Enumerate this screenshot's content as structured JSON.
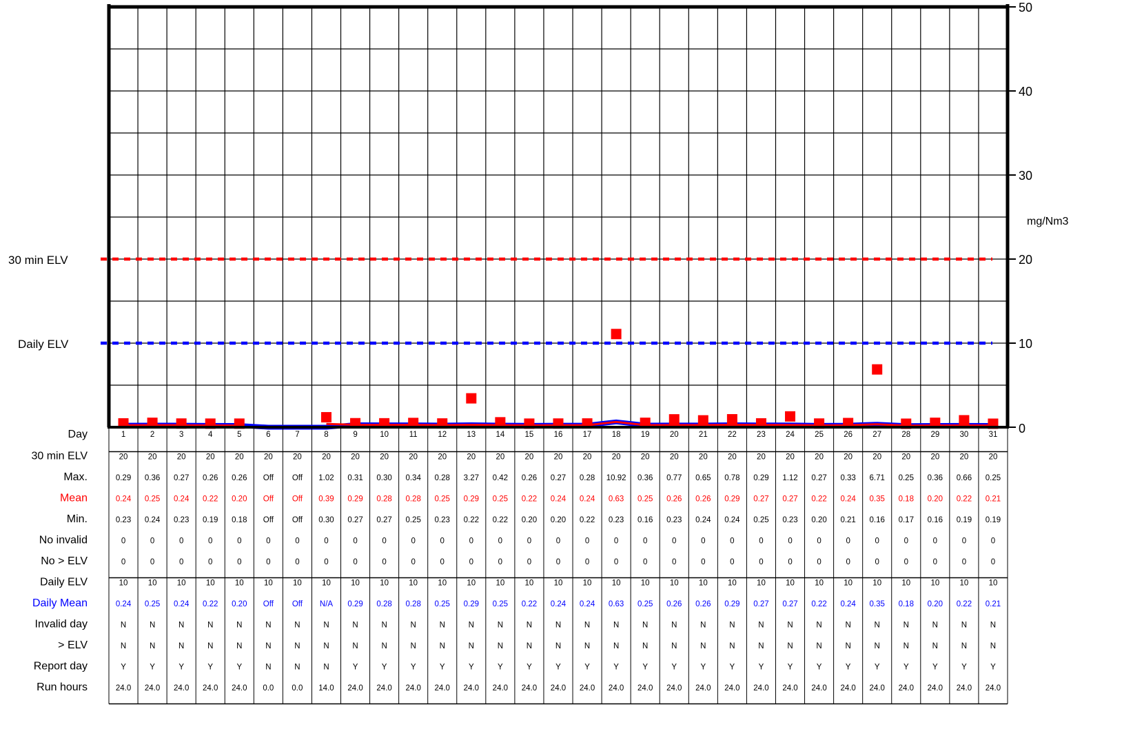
{
  "chart_data": {
    "type": "line",
    "y_unit": "mg/Nm3",
    "ylim": [
      0,
      50
    ],
    "y_ticks": [
      0,
      10,
      20,
      30,
      40,
      50
    ],
    "grid": true,
    "reference_lines": [
      {
        "label": "30 min ELV",
        "value": 20,
        "color": "#ff0000",
        "style": "dashed"
      },
      {
        "label": "Daily ELV",
        "value": 10,
        "color": "#0000ff",
        "style": "dashed"
      }
    ],
    "days": [
      1,
      2,
      3,
      4,
      5,
      6,
      7,
      8,
      9,
      10,
      11,
      12,
      13,
      14,
      15,
      16,
      17,
      18,
      19,
      20,
      21,
      22,
      23,
      24,
      25,
      26,
      27,
      28,
      29,
      30,
      31
    ],
    "series": [
      {
        "marker": "square",
        "color": "#ff0000",
        "values": [
          0.29,
          0.36,
          0.27,
          0.26,
          0.26,
          null,
          null,
          1.02,
          0.31,
          0.3,
          0.34,
          0.28,
          3.27,
          0.42,
          0.26,
          0.27,
          0.28,
          10.92,
          0.36,
          0.77,
          0.65,
          0.78,
          0.29,
          1.12,
          0.27,
          0.33,
          6.71,
          0.25,
          0.36,
          0.66,
          0.25
        ]
      },
      {
        "color": "#ff0000",
        "values": [
          0.24,
          0.25,
          0.24,
          0.22,
          0.2,
          null,
          null,
          0.39,
          0.29,
          0.28,
          0.28,
          0.25,
          0.29,
          0.25,
          0.22,
          0.24,
          0.24,
          0.63,
          0.25,
          0.26,
          0.26,
          0.29,
          0.27,
          0.27,
          0.22,
          0.24,
          0.35,
          0.18,
          0.2,
          0.22,
          0.21
        ]
      },
      {
        "color": "#0000ff",
        "values": [
          0.24,
          0.25,
          0.24,
          0.22,
          0.2,
          0.0,
          0.0,
          0.0,
          0.29,
          0.28,
          0.28,
          0.25,
          0.29,
          0.25,
          0.22,
          0.24,
          0.24,
          0.63,
          0.25,
          0.26,
          0.26,
          0.29,
          0.27,
          0.27,
          0.22,
          0.24,
          0.35,
          0.18,
          0.2,
          0.22,
          0.21
        ]
      }
    ],
    "table": {
      "rows": [
        {
          "label": "Day",
          "color": "#000000",
          "values": [
            "1",
            "2",
            "3",
            "4",
            "5",
            "6",
            "7",
            "8",
            "9",
            "10",
            "11",
            "12",
            "13",
            "14",
            "15",
            "16",
            "17",
            "18",
            "19",
            "20",
            "21",
            "22",
            "23",
            "24",
            "25",
            "26",
            "27",
            "28",
            "29",
            "30",
            "31"
          ]
        },
        {
          "label": "30 min ELV",
          "color": "#000000",
          "values": [
            "20",
            "20",
            "20",
            "20",
            "20",
            "20",
            "20",
            "20",
            "20",
            "20",
            "20",
            "20",
            "20",
            "20",
            "20",
            "20",
            "20",
            "20",
            "20",
            "20",
            "20",
            "20",
            "20",
            "20",
            "20",
            "20",
            "20",
            "20",
            "20",
            "20",
            "20"
          ]
        },
        {
          "label": "Max.",
          "color": "#000000",
          "values": [
            "0.29",
            "0.36",
            "0.27",
            "0.26",
            "0.26",
            "Off",
            "Off",
            "1.02",
            "0.31",
            "0.30",
            "0.34",
            "0.28",
            "3.27",
            "0.42",
            "0.26",
            "0.27",
            "0.28",
            "10.92",
            "0.36",
            "0.77",
            "0.65",
            "0.78",
            "0.29",
            "1.12",
            "0.27",
            "0.33",
            "6.71",
            "0.25",
            "0.36",
            "0.66",
            "0.25"
          ]
        },
        {
          "label": "Mean",
          "color": "#ff0000",
          "values": [
            "0.24",
            "0.25",
            "0.24",
            "0.22",
            "0.20",
            "Off",
            "Off",
            "0.39",
            "0.29",
            "0.28",
            "0.28",
            "0.25",
            "0.29",
            "0.25",
            "0.22",
            "0.24",
            "0.24",
            "0.63",
            "0.25",
            "0.26",
            "0.26",
            "0.29",
            "0.27",
            "0.27",
            "0.22",
            "0.24",
            "0.35",
            "0.18",
            "0.20",
            "0.22",
            "0.21"
          ]
        },
        {
          "label": "Min.",
          "color": "#000000",
          "values": [
            "0.23",
            "0.24",
            "0.23",
            "0.19",
            "0.18",
            "Off",
            "Off",
            "0.30",
            "0.27",
            "0.27",
            "0.25",
            "0.23",
            "0.22",
            "0.22",
            "0.20",
            "0.20",
            "0.22",
            "0.23",
            "0.16",
            "0.23",
            "0.24",
            "0.24",
            "0.25",
            "0.23",
            "0.20",
            "0.21",
            "0.16",
            "0.17",
            "0.16",
            "0.19",
            "0.19"
          ]
        },
        {
          "label": "No invalid",
          "color": "#000000",
          "values": [
            "0",
            "0",
            "0",
            "0",
            "0",
            "0",
            "0",
            "0",
            "0",
            "0",
            "0",
            "0",
            "0",
            "0",
            "0",
            "0",
            "0",
            "0",
            "0",
            "0",
            "0",
            "0",
            "0",
            "0",
            "0",
            "0",
            "0",
            "0",
            "0",
            "0",
            "0"
          ]
        },
        {
          "label": "No > ELV",
          "color": "#000000",
          "values": [
            "0",
            "0",
            "0",
            "0",
            "0",
            "0",
            "0",
            "0",
            "0",
            "0",
            "0",
            "0",
            "0",
            "0",
            "0",
            "0",
            "0",
            "0",
            "0",
            "0",
            "0",
            "0",
            "0",
            "0",
            "0",
            "0",
            "0",
            "0",
            "0",
            "0",
            "0"
          ]
        },
        {
          "label": "Daily ELV",
          "color": "#000000",
          "values": [
            "10",
            "10",
            "10",
            "10",
            "10",
            "10",
            "10",
            "10",
            "10",
            "10",
            "10",
            "10",
            "10",
            "10",
            "10",
            "10",
            "10",
            "10",
            "10",
            "10",
            "10",
            "10",
            "10",
            "10",
            "10",
            "10",
            "10",
            "10",
            "10",
            "10",
            "10"
          ]
        },
        {
          "label": "Daily Mean",
          "color": "#0000ff",
          "values": [
            "0.24",
            "0.25",
            "0.24",
            "0.22",
            "0.20",
            "Off",
            "Off",
            "N/A",
            "0.29",
            "0.28",
            "0.28",
            "0.25",
            "0.29",
            "0.25",
            "0.22",
            "0.24",
            "0.24",
            "0.63",
            "0.25",
            "0.26",
            "0.26",
            "0.29",
            "0.27",
            "0.27",
            "0.22",
            "0.24",
            "0.35",
            "0.18",
            "0.20",
            "0.22",
            "0.21"
          ]
        },
        {
          "label": "Invalid day",
          "color": "#000000",
          "values": [
            "N",
            "N",
            "N",
            "N",
            "N",
            "N",
            "N",
            "N",
            "N",
            "N",
            "N",
            "N",
            "N",
            "N",
            "N",
            "N",
            "N",
            "N",
            "N",
            "N",
            "N",
            "N",
            "N",
            "N",
            "N",
            "N",
            "N",
            "N",
            "N",
            "N",
            "N"
          ]
        },
        {
          "label": "> ELV",
          "color": "#000000",
          "values": [
            "N",
            "N",
            "N",
            "N",
            "N",
            "N",
            "N",
            "N",
            "N",
            "N",
            "N",
            "N",
            "N",
            "N",
            "N",
            "N",
            "N",
            "N",
            "N",
            "N",
            "N",
            "N",
            "N",
            "N",
            "N",
            "N",
            "N",
            "N",
            "N",
            "N",
            "N"
          ]
        },
        {
          "label": "Report day",
          "color": "#000000",
          "values": [
            "Y",
            "Y",
            "Y",
            "Y",
            "Y",
            "N",
            "N",
            "N",
            "Y",
            "Y",
            "Y",
            "Y",
            "Y",
            "Y",
            "Y",
            "Y",
            "Y",
            "Y",
            "Y",
            "Y",
            "Y",
            "Y",
            "Y",
            "Y",
            "Y",
            "Y",
            "Y",
            "Y",
            "Y",
            "Y",
            "Y"
          ]
        },
        {
          "label": "Run hours",
          "color": "#000000",
          "values": [
            "24.0",
            "24.0",
            "24.0",
            "24.0",
            "24.0",
            "0.0",
            "0.0",
            "14.0",
            "24.0",
            "24.0",
            "24.0",
            "24.0",
            "24.0",
            "24.0",
            "24.0",
            "24.0",
            "24.0",
            "24.0",
            "24.0",
            "24.0",
            "24.0",
            "24.0",
            "24.0",
            "24.0",
            "24.0",
            "24.0",
            "24.0",
            "24.0",
            "24.0",
            "24.0",
            "24.0"
          ]
        }
      ]
    }
  }
}
